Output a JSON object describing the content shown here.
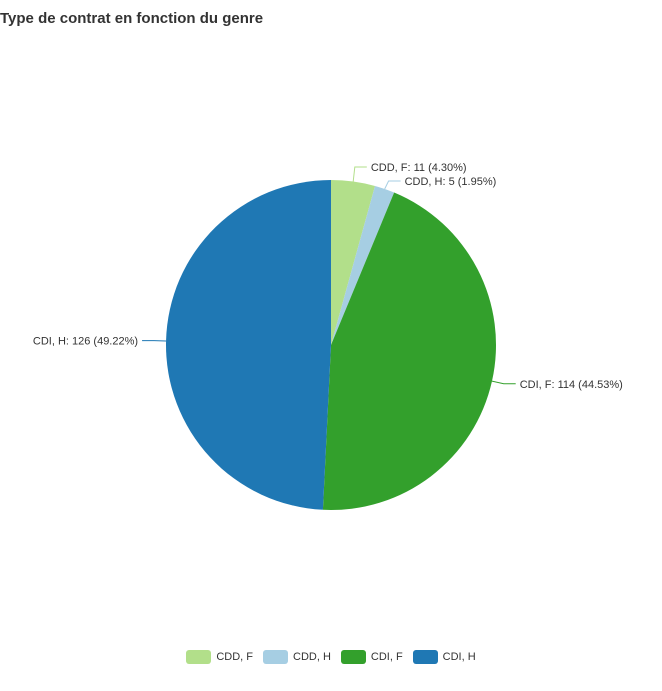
{
  "chart_data": {
    "type": "pie",
    "title": "Type de contrat en fonction du genre",
    "slices": [
      {
        "name": "CDD, F",
        "value": 11,
        "percent": 4.3,
        "label": "CDD, F: 11 (4.30%)",
        "color": "#b2df8a"
      },
      {
        "name": "CDD, H",
        "value": 5,
        "percent": 1.95,
        "label": "CDD, H: 5 (1.95%)",
        "color": "#a6cee3"
      },
      {
        "name": "CDI, F",
        "value": 114,
        "percent": 44.53,
        "label": "CDI, F: 114 (44.53%)",
        "color": "#33a02c"
      },
      {
        "name": "CDI, H",
        "value": 126,
        "percent": 49.22,
        "label": "CDI, H: 126 (49.22%)",
        "color": "#1f78b4"
      }
    ],
    "legend_position": "bottom"
  }
}
